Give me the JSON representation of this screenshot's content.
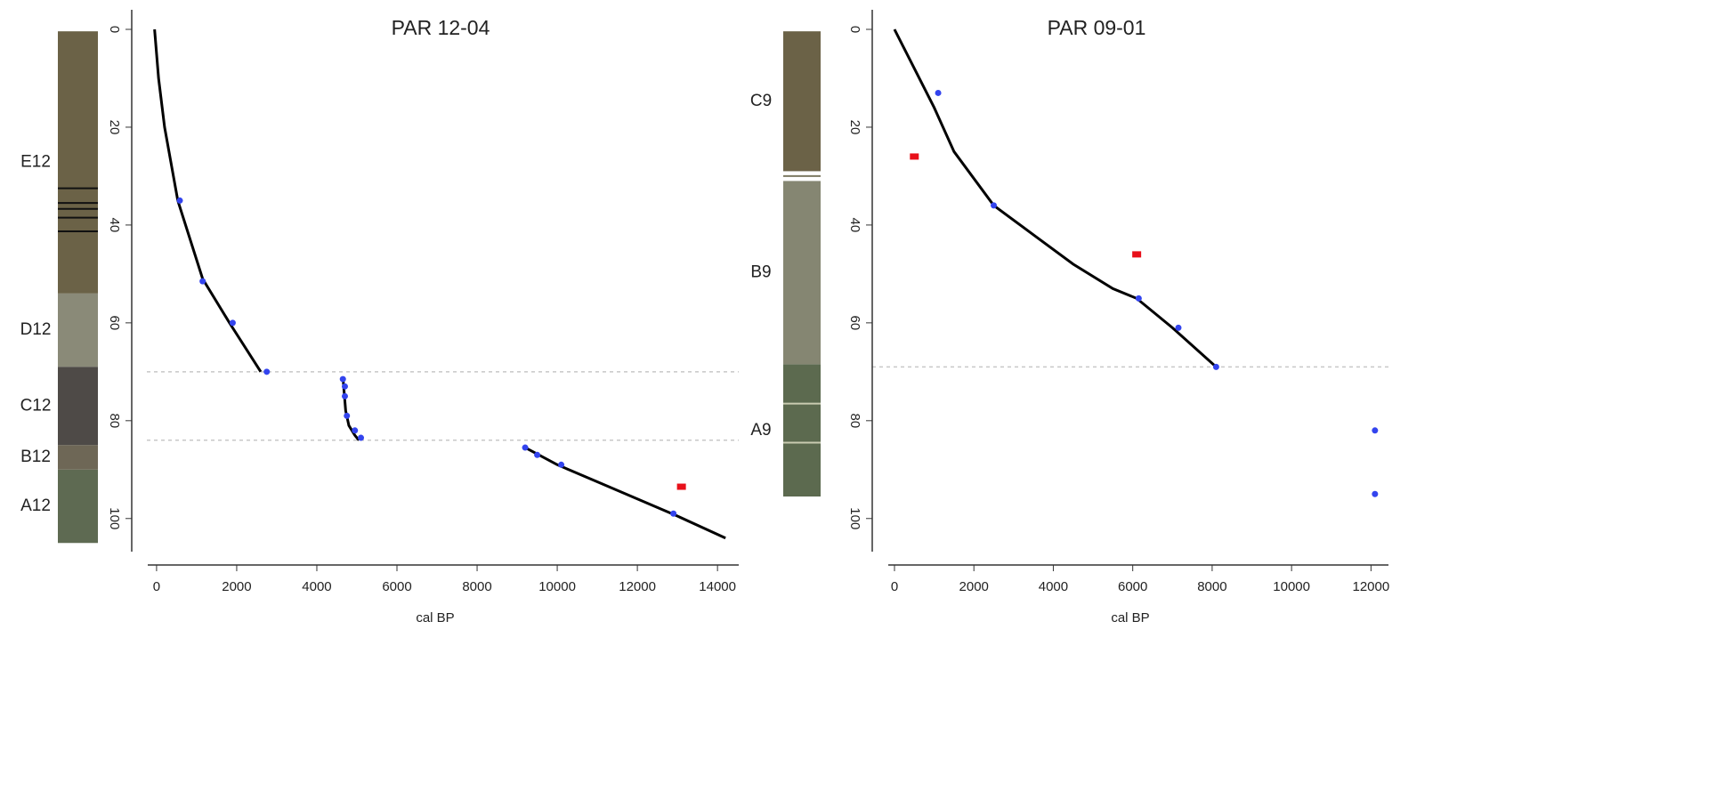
{
  "chart_data": [
    {
      "type": "line",
      "title": "PAR 12-04",
      "x_label": "cal BP",
      "xlim": [
        -620,
        14530
      ],
      "ylim": [
        -4,
        109.5
      ],
      "y_inverted": true,
      "xticks": [
        0,
        2000,
        4000,
        6000,
        8000,
        10000,
        12000,
        14000
      ],
      "yticks": [
        0,
        20,
        40,
        60,
        80,
        100
      ],
      "series": [
        {
          "kind": "line",
          "color": "#000000",
          "x": [
            -50,
            50,
            200,
            530,
            1150,
            1820,
            2600,
            null,
            4650,
            4680,
            4720,
            4800,
            4950,
            5050,
            null,
            9200,
            10000,
            11000,
            12000,
            13000,
            14200
          ],
          "values": [
            0,
            10,
            20,
            35,
            51,
            60,
            70,
            null,
            71,
            74,
            78,
            81,
            83,
            84,
            null,
            85.5,
            89,
            92.5,
            96,
            99.5,
            104
          ]
        },
        {
          "kind": "points",
          "color": "#3344ee",
          "x": [
            580,
            1150,
            1900,
            2750,
            4650,
            4700,
            4700,
            4750,
            4950,
            5100,
            9200,
            9500,
            10100,
            12900
          ],
          "values": [
            35,
            51.5,
            60,
            70,
            71.5,
            73,
            75,
            79,
            82,
            83.5,
            85.5,
            87,
            89,
            99
          ]
        },
        {
          "kind": "squares",
          "color": "#e8101a",
          "x": [
            13100
          ],
          "values": [
            93.5
          ]
        }
      ],
      "hiatus_depths": [
        70,
        84
      ],
      "hiatus_color": "#c8c8c8",
      "column": {
        "units": [
          {
            "label": "E12",
            "top": 0.4,
            "bottom": 54,
            "color": "#6b6247"
          },
          {
            "label": "D12",
            "top": 54,
            "bottom": 69,
            "color": "#8a8a78"
          },
          {
            "label": "C12",
            "top": 69,
            "bottom": 85,
            "color": "#4e4a47"
          },
          {
            "label": "B12",
            "top": 85,
            "bottom": 90,
            "color": "#6e6756"
          },
          {
            "label": "A12",
            "top": 90,
            "bottom": 105,
            "color": "#5e6a52"
          }
        ],
        "bands": [
          {
            "depth": 32.5,
            "color": "#111111"
          },
          {
            "depth": 35.5,
            "color": "#111111"
          },
          {
            "depth": 36.7,
            "color": "#111111"
          },
          {
            "depth": 38.5,
            "color": "#111111"
          },
          {
            "depth": 41.3,
            "color": "#111111"
          }
        ]
      }
    },
    {
      "type": "line",
      "title": "PAR 09-01",
      "x_label": "cal BP",
      "xlim": [
        -560,
        12440
      ],
      "ylim": [
        -4,
        109.5
      ],
      "y_inverted": true,
      "xticks": [
        0,
        2000,
        4000,
        6000,
        8000,
        10000,
        12000
      ],
      "yticks": [
        0,
        20,
        40,
        60,
        80,
        100
      ],
      "series": [
        {
          "kind": "line",
          "color": "#000000",
          "x": [
            0,
            500,
            1000,
            1500,
            2500,
            3500,
            4500,
            5500,
            6100,
            7000,
            8100
          ],
          "values": [
            0,
            8,
            16,
            25,
            36,
            42,
            48,
            53,
            55,
            61,
            69
          ]
        },
        {
          "kind": "points",
          "color": "#3344ee",
          "x": [
            1100,
            2500,
            6150,
            7150,
            8100,
            12100,
            12100
          ],
          "values": [
            13,
            36,
            55,
            61,
            69,
            82,
            95
          ]
        },
        {
          "kind": "squares",
          "color": "#e8101a",
          "x": [
            500,
            6100
          ],
          "values": [
            26,
            46
          ]
        }
      ],
      "hiatus_depths": [
        69
      ],
      "hiatus_color": "#c8c8c8",
      "column": {
        "units": [
          {
            "label": "C9",
            "top": 0.4,
            "bottom": 29,
            "color": "#6b6247"
          },
          {
            "label": "B9",
            "top": 31,
            "bottom": 68.5,
            "color": "#858672"
          },
          {
            "label": "A9",
            "top": 68.5,
            "bottom": 95.5,
            "color": "#5c6a4f"
          }
        ],
        "bands": [
          {
            "depth": 30,
            "color": "#7d7a62"
          },
          {
            "depth": 76.5,
            "color": "#c9cbb0"
          },
          {
            "depth": 84.5,
            "color": "#c9cbb0"
          }
        ]
      }
    }
  ]
}
